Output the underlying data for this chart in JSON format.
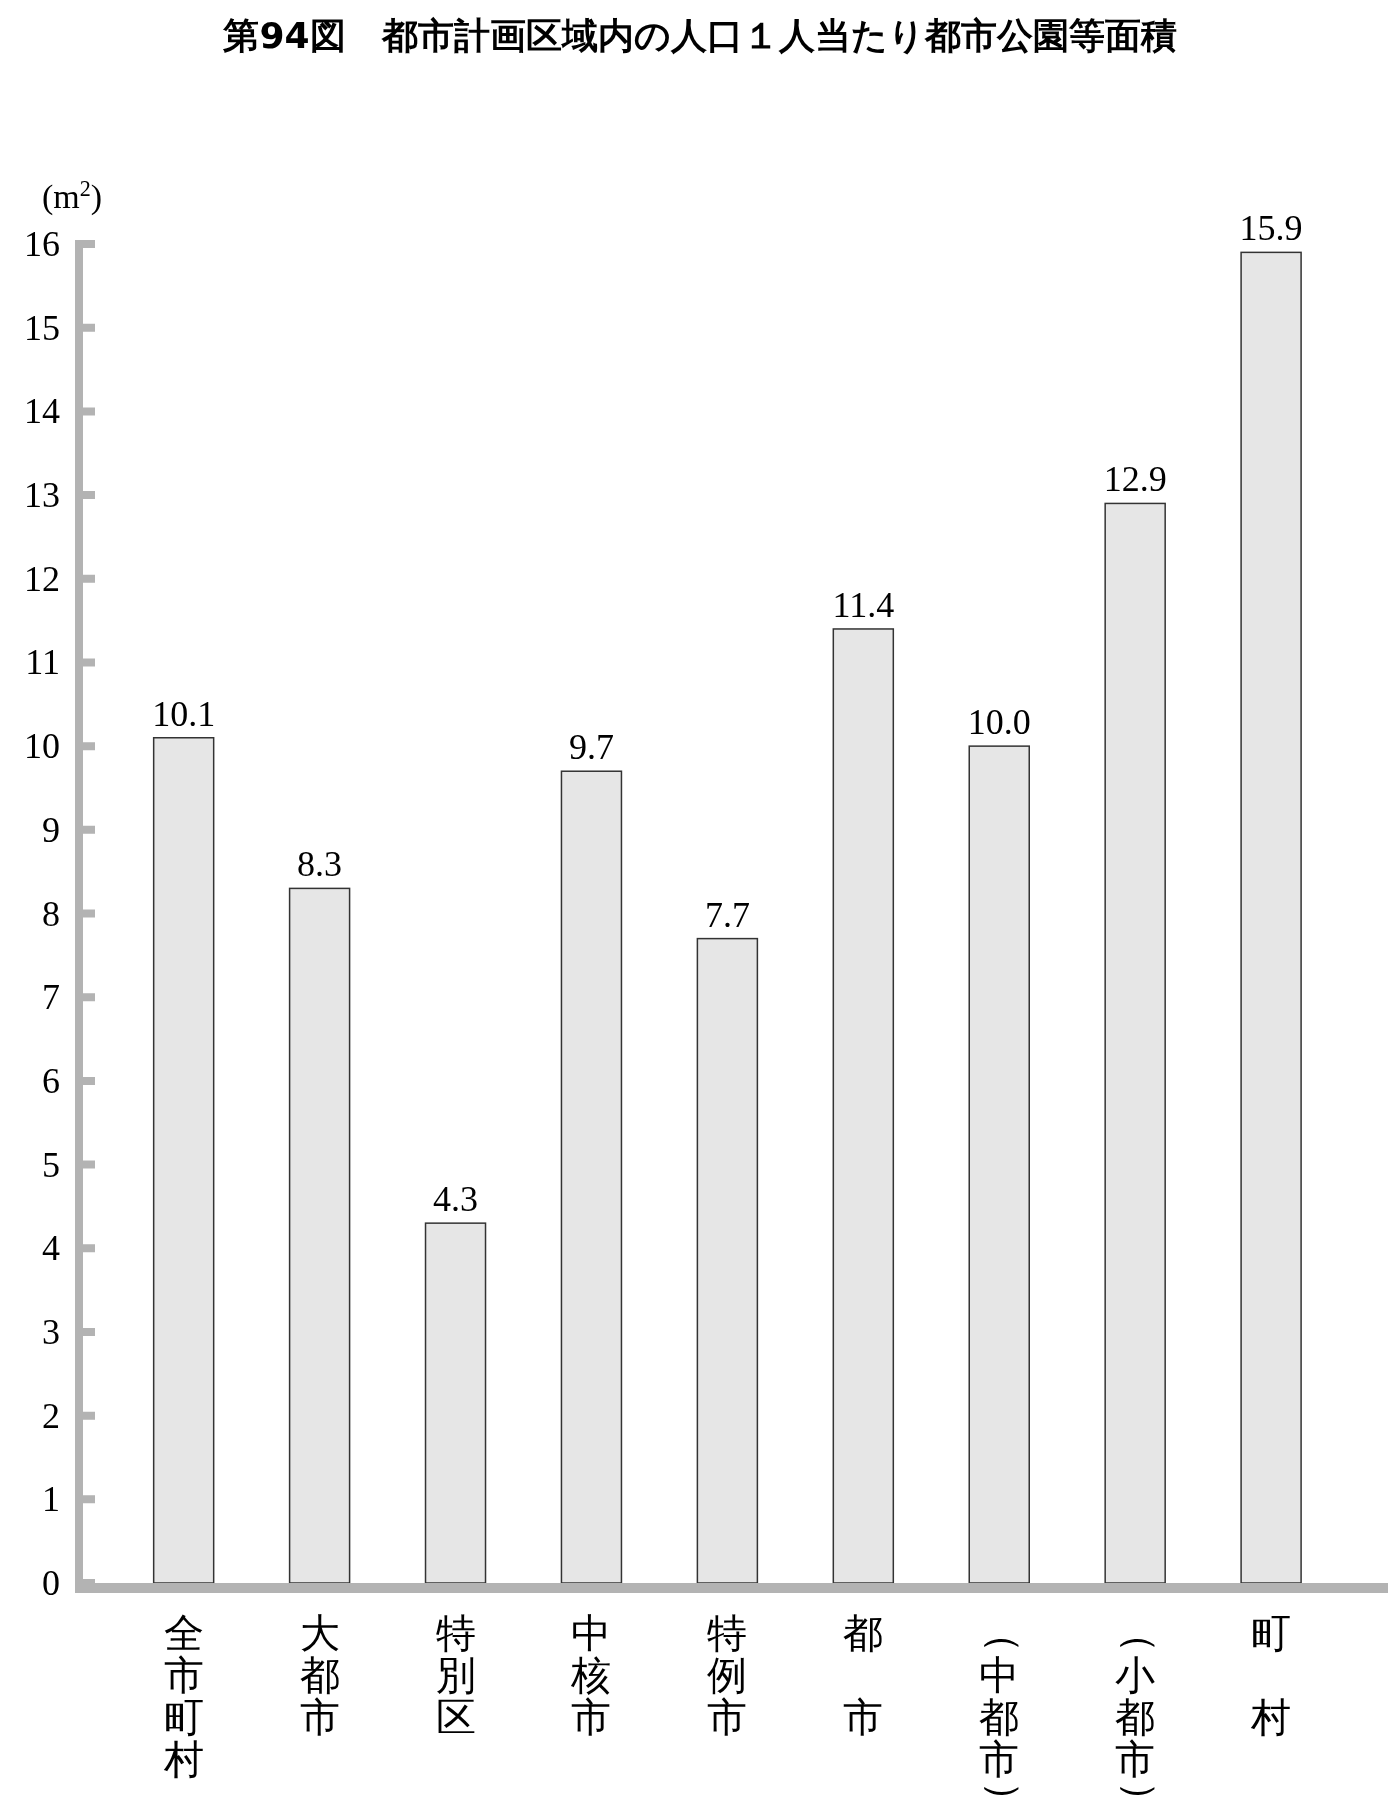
{
  "chart_data": {
    "type": "bar",
    "title": "第94図　都市計画区域内の人口１人当たり都市公園等面積",
    "ylabel": "(m$^{2}$)",
    "categories": [
      "全市町村",
      "大都市",
      "特別区",
      "中核市",
      "特例市",
      "都市",
      "（中都市）",
      "（小都市）",
      "町村"
    ],
    "values": [
      10.1,
      8.3,
      4.3,
      9.7,
      7.7,
      11.4,
      10.0,
      12.9,
      15.9
    ],
    "value_labels": [
      "10.1",
      "8.3",
      "4.3",
      "9.7",
      "7.7",
      "11.4",
      "10.0",
      "12.9",
      "15.9"
    ],
    "color": "#e6e6e6",
    "ylim": [
      0,
      16
    ],
    "yticks": [
      0,
      1,
      2,
      3,
      4,
      5,
      6,
      7,
      8,
      9,
      10,
      11,
      12,
      13,
      14,
      15,
      16
    ]
  }
}
